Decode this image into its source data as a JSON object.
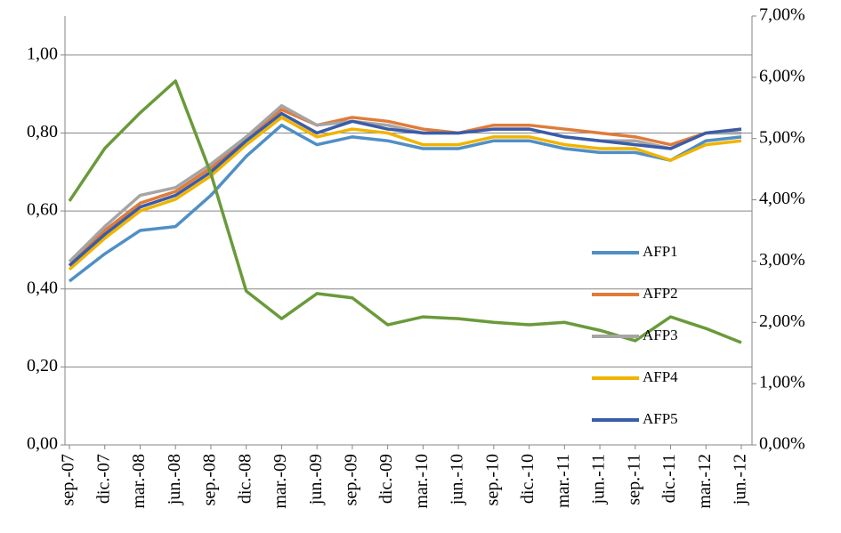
{
  "chart_data": {
    "type": "line",
    "categories": [
      "sep.-07",
      "dic.-07",
      "mar.-08",
      "jun.-08",
      "sep.-08",
      "dic.-08",
      "mar.-09",
      "jun.-09",
      "sep.-09",
      "dic.-09",
      "mar.-10",
      "jun.-10",
      "sep.-10",
      "dic.-10",
      "mar.-11",
      "jun.-11",
      "sep.-11",
      "dic.-11",
      "mar.-12",
      "jun.-12"
    ],
    "series": [
      {
        "name": "AFP1",
        "color": "#4f8fc6",
        "values": [
          0.42,
          0.49,
          0.55,
          0.56,
          0.64,
          0.74,
          0.82,
          0.77,
          0.79,
          0.78,
          0.76,
          0.76,
          0.78,
          0.78,
          0.76,
          0.75,
          0.75,
          0.73,
          0.78,
          0.79
        ]
      },
      {
        "name": "AFP2",
        "color": "#e07b39",
        "values": [
          0.46,
          0.55,
          0.62,
          0.65,
          0.71,
          0.79,
          0.86,
          0.82,
          0.84,
          0.83,
          0.81,
          0.8,
          0.82,
          0.82,
          0.81,
          0.8,
          0.79,
          0.77,
          0.8,
          0.81
        ]
      },
      {
        "name": "AFP3",
        "color": "#a5a5a5",
        "values": [
          0.47,
          0.56,
          0.64,
          0.66,
          0.72,
          0.79,
          0.87,
          0.82,
          0.83,
          0.82,
          0.8,
          0.8,
          0.81,
          0.81,
          0.79,
          0.78,
          0.78,
          0.76,
          0.8,
          0.8
        ]
      },
      {
        "name": "AFP4",
        "color": "#f0b400",
        "values": [
          0.45,
          0.53,
          0.6,
          0.63,
          0.69,
          0.77,
          0.84,
          0.79,
          0.81,
          0.8,
          0.77,
          0.77,
          0.79,
          0.79,
          0.77,
          0.76,
          0.76,
          0.73,
          0.77,
          0.78
        ]
      },
      {
        "name": "AFP5",
        "color": "#3a5ca8",
        "values": [
          0.46,
          0.54,
          0.61,
          0.64,
          0.7,
          0.78,
          0.85,
          0.8,
          0.83,
          0.81,
          0.8,
          0.8,
          0.81,
          0.81,
          0.79,
          0.78,
          0.77,
          0.76,
          0.8,
          0.81
        ]
      },
      {
        "color": "#6a9a3a",
        "axis": "y2",
        "values": [
          3.98,
          4.84,
          5.42,
          5.94,
          4.43,
          2.51,
          2.06,
          2.47,
          2.4,
          1.96,
          2.09,
          2.06,
          2.0,
          1.96,
          2.0,
          1.87,
          1.7,
          2.09,
          1.9,
          1.67
        ]
      }
    ],
    "ylim": [
      0,
      1.1
    ],
    "yticks": [
      {
        "value": 0,
        "label": "0,00"
      },
      {
        "value": 0.2,
        "label": "0,20"
      },
      {
        "value": 0.4,
        "label": "0,40"
      },
      {
        "value": 0.6,
        "label": "0,60"
      },
      {
        "value": 0.8,
        "label": "0,80"
      },
      {
        "value": 1,
        "label": "1,00"
      }
    ],
    "y2lim": [
      0,
      7
    ],
    "y2ticks": [
      {
        "value": 0,
        "label": "0,00%"
      },
      {
        "value": 1,
        "label": "1,00%"
      },
      {
        "value": 2,
        "label": "2,00%"
      },
      {
        "value": 3,
        "label": "3,00%"
      },
      {
        "value": 4,
        "label": "4,00%"
      },
      {
        "value": 5,
        "label": "5,00%"
      },
      {
        "value": 6,
        "label": "6,00%"
      },
      {
        "value": 7,
        "label": "7,00%"
      }
    ],
    "grid": true,
    "legend": "right"
  }
}
